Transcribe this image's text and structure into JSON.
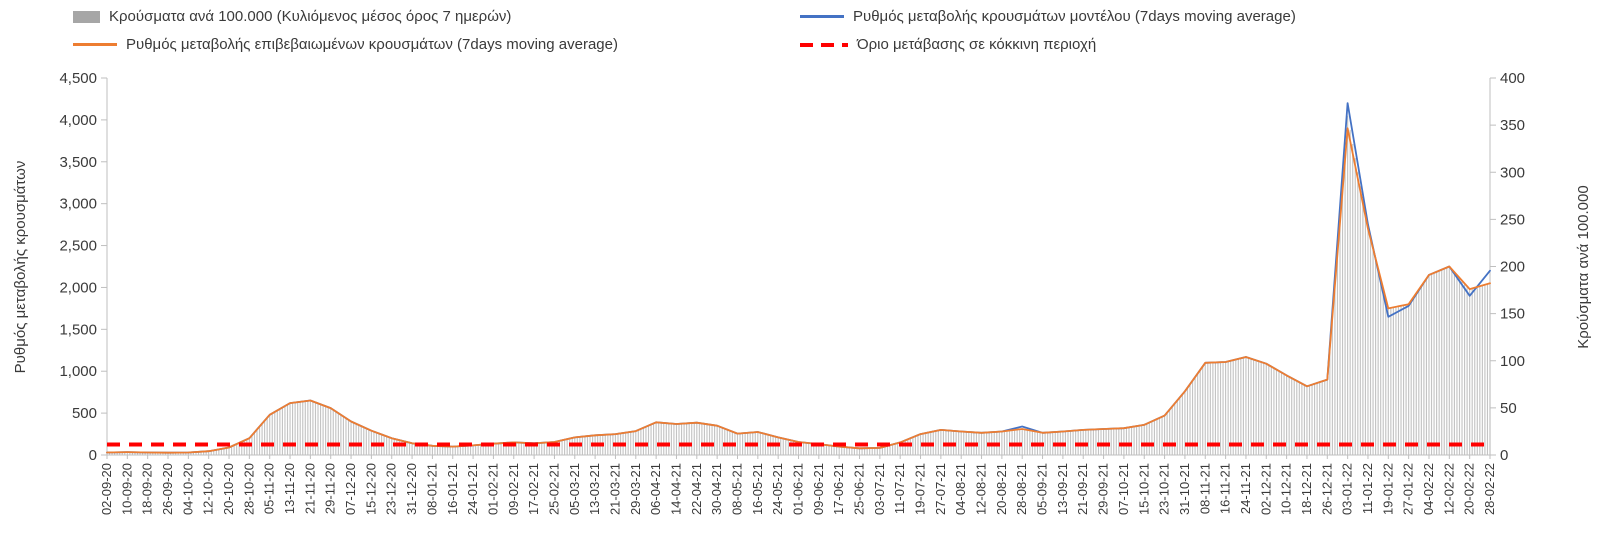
{
  "legend": {
    "items": [
      {
        "label": "Κρούσματα ανά 100.000 (Κυλιόμενος μέσος όρος 7 ημερών)",
        "marker": "bar",
        "color": "#a6a6a6"
      },
      {
        "label": "Ρυθμός μεταβολής κρουσμάτων μοντέλου (7days moving average)",
        "marker": "line",
        "color": "#4472c4"
      },
      {
        "label": "Ρυθμός μεταβολής επιβεβαιωμένων κρουσμάτων (7days moving average)",
        "marker": "line",
        "color": "#ed7d31"
      },
      {
        "label": "Όριο μετάβασης σε κόκκινη περιοχή",
        "marker": "dashed-line",
        "color": "#ff0000"
      }
    ]
  },
  "chart_data": {
    "type": "bar",
    "subtype": "combo-bar-and-lines",
    "grid": false,
    "legend_position": "top",
    "x": [
      "02-09-20",
      "10-09-20",
      "18-09-20",
      "26-09-20",
      "04-10-20",
      "12-10-20",
      "20-10-20",
      "28-10-20",
      "05-11-20",
      "13-11-20",
      "21-11-20",
      "29-11-20",
      "07-12-20",
      "15-12-20",
      "23-12-20",
      "31-12-20",
      "08-01-21",
      "16-01-21",
      "24-01-21",
      "01-02-21",
      "09-02-21",
      "17-02-21",
      "25-02-21",
      "05-03-21",
      "13-03-21",
      "21-03-21",
      "29-03-21",
      "06-04-21",
      "14-04-21",
      "22-04-21",
      "30-04-21",
      "08-05-21",
      "16-05-21",
      "24-05-21",
      "01-06-21",
      "09-06-21",
      "17-06-21",
      "25-06-21",
      "03-07-21",
      "11-07-21",
      "19-07-21",
      "27-07-21",
      "04-08-21",
      "12-08-21",
      "20-08-21",
      "28-08-21",
      "05-09-21",
      "13-09-21",
      "21-09-21",
      "29-09-21",
      "07-10-21",
      "15-10-21",
      "23-10-21",
      "31-10-21",
      "08-11-21",
      "16-11-21",
      "24-11-21",
      "02-12-21",
      "10-12-21",
      "18-12-21",
      "26-12-21",
      "03-01-22",
      "11-01-22",
      "19-01-22",
      "27-01-22",
      "04-02-22",
      "12-02-22",
      "20-02-22",
      "28-02-22"
    ],
    "left_axis": {
      "label": "Ρυθμός μεταβολής κρουσμάτων",
      "min": 0,
      "max": 4500,
      "step": 500,
      "tick_labels": [
        "0",
        "500",
        "1,000",
        "1,500",
        "2,000",
        "2,500",
        "3,000",
        "3,500",
        "4,000",
        "4,500"
      ]
    },
    "right_axis": {
      "label": "Κρούσματα ανά 100.000",
      "min": 0,
      "max": 400,
      "step": 50,
      "tick_labels": [
        "0",
        "50",
        "100",
        "150",
        "200",
        "250",
        "300",
        "350",
        "400"
      ]
    },
    "series": [
      {
        "id": "cases_per_100k",
        "name": "Κρούσματα ανά 100.000 (Κυλιόμενος μέσος όρος 7 ημερών)",
        "type": "bar",
        "axis": "right",
        "color": "#c4c4c4",
        "values": [
          2.7,
          3.1,
          2.7,
          2.5,
          2.7,
          4,
          8,
          17.8,
          42.7,
          55.1,
          57.8,
          49.8,
          35.6,
          25.8,
          17.8,
          12.4,
          9.8,
          8.9,
          10.2,
          12,
          13.3,
          12.4,
          13.8,
          18.7,
          20.9,
          22.2,
          25.3,
          34.7,
          32.9,
          34.2,
          31.1,
          22.7,
          24.4,
          18.7,
          13.8,
          11.6,
          8.9,
          7.1,
          7.6,
          13.3,
          22.2,
          26.7,
          24.9,
          23.6,
          24.9,
          27.6,
          23.6,
          24.9,
          26.7,
          27.6,
          28.4,
          32,
          41.8,
          67.6,
          97.8,
          98.7,
          104,
          96.9,
          84.4,
          72.9,
          80,
          360,
          240,
          155.6,
          160,
          191.1,
          200,
          176,
          182.2
        ]
      },
      {
        "id": "model_rate",
        "name": "Ρυθμός μεταβολής κρουσμάτων μοντέλου (7days moving average)",
        "type": "line",
        "axis": "left",
        "color": "#4472c4",
        "values": [
          30,
          35,
          30,
          28,
          30,
          45,
          90,
          200,
          480,
          620,
          650,
          560,
          400,
          290,
          200,
          140,
          110,
          100,
          115,
          135,
          150,
          140,
          155,
          210,
          235,
          250,
          285,
          390,
          370,
          385,
          350,
          255,
          275,
          210,
          155,
          130,
          100,
          80,
          85,
          150,
          250,
          300,
          280,
          265,
          280,
          340,
          265,
          280,
          300,
          310,
          320,
          360,
          470,
          760,
          1100,
          1110,
          1170,
          1090,
          950,
          820,
          900,
          4200,
          2750,
          1650,
          1780,
          2150,
          2250,
          1900,
          2200
        ]
      },
      {
        "id": "confirmed_rate",
        "name": "Ρυθμός μεταβολής επιβεβαιωμένων κρουσμάτων (7days moving average)",
        "type": "line",
        "axis": "left",
        "color": "#ed7d31",
        "values": [
          30,
          35,
          30,
          28,
          30,
          45,
          90,
          200,
          480,
          620,
          650,
          560,
          400,
          290,
          200,
          140,
          110,
          100,
          115,
          135,
          150,
          140,
          155,
          210,
          235,
          250,
          285,
          390,
          370,
          385,
          350,
          255,
          275,
          210,
          155,
          130,
          100,
          80,
          85,
          150,
          250,
          300,
          280,
          265,
          280,
          310,
          265,
          280,
          300,
          310,
          320,
          360,
          470,
          760,
          1100,
          1110,
          1170,
          1090,
          950,
          820,
          900,
          3900,
          2700,
          1750,
          1800,
          2150,
          2250,
          1980,
          2050
        ]
      },
      {
        "id": "threshold",
        "name": "Όριο μετάβασης σε κόκκινη περιοχή",
        "type": "dashed-line",
        "axis": "left",
        "color": "#ff0000",
        "value": 125
      }
    ]
  }
}
